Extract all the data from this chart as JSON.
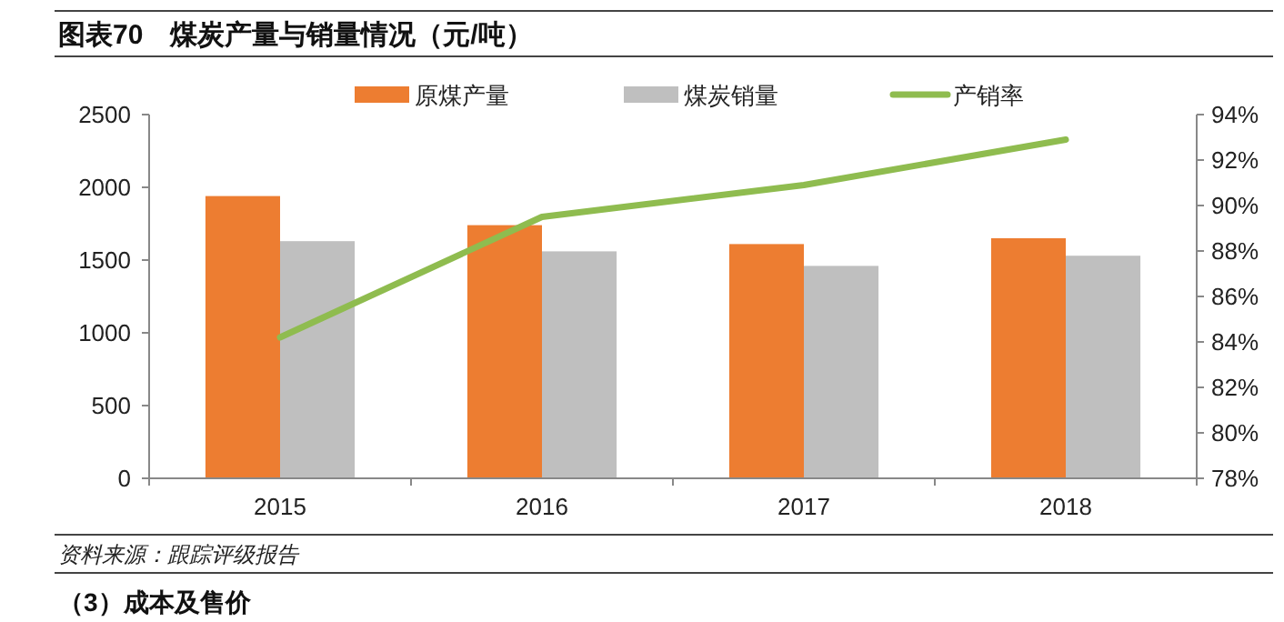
{
  "chart_data": {
    "type": "bar",
    "title": "图表70　煤炭产量与销量情况（元/吨）",
    "categories": [
      "2015",
      "2016",
      "2017",
      "2018"
    ],
    "series": [
      {
        "name": "原煤产量",
        "color": "#ed7d31",
        "values": [
          1940,
          1740,
          1610,
          1650
        ]
      },
      {
        "name": "煤炭销量",
        "color": "#bfbfbf",
        "values": [
          1630,
          1560,
          1460,
          1530
        ]
      },
      {
        "name": "产销率",
        "type": "line",
        "axis": "y2",
        "color": "#8fbc4f",
        "values": [
          84.2,
          89.5,
          90.9,
          92.9
        ]
      }
    ],
    "ylim": [
      0,
      2500
    ],
    "yticks": [
      0,
      500,
      1000,
      1500,
      2000,
      2500
    ],
    "y2lim": [
      78,
      94
    ],
    "y2ticks": [
      {
        "value": 78,
        "label": "78%"
      },
      {
        "value": 80,
        "label": "80%"
      },
      {
        "value": 82,
        "label": "82%"
      },
      {
        "value": 84,
        "label": "84%"
      },
      {
        "value": 86,
        "label": "86%"
      },
      {
        "value": 88,
        "label": "88%"
      },
      {
        "value": 90,
        "label": "90%"
      },
      {
        "value": 92,
        "label": "92%"
      },
      {
        "value": 94,
        "label": "94%"
      }
    ],
    "legend": "top",
    "grid": false,
    "annotations": [
      "资料来源：跟踪评级报告",
      "（3）成本及售价"
    ]
  }
}
